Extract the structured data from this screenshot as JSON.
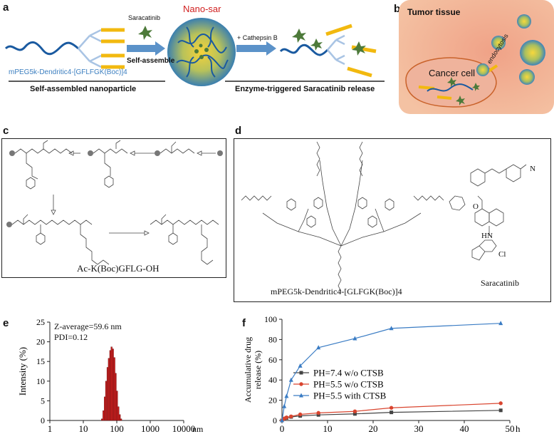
{
  "panels": {
    "a": {
      "label": "a",
      "drug_label": "Saracatinib",
      "self_assemble_label": "Self-assemble",
      "nano_title": "Nano-sar",
      "cathepsin_label": "+ Cathepsin B",
      "polymer_label": "mPEG5k-Dendritic4-[GFLFGK(Boc)]4",
      "caption_left": "Self-assembled nanoparticle",
      "caption_right": "Enzyme-triggered Saracatinib release"
    },
    "b": {
      "label": "b",
      "tissue_label": "Tumor tissue",
      "cell_label": "Cancer cell",
      "endocytosis_label": "endocytosis"
    },
    "c": {
      "label": "c",
      "product_label": "Ac-K(Boc)GFLG-OH"
    },
    "d": {
      "label": "d",
      "polymer_label": "mPEG5k-Dendritic4-[GLFGK(Boc)]4",
      "drug_label": "Saracatinib",
      "atom_O": "O",
      "atom_HN": "HN",
      "atom_Cl": "Cl",
      "atom_N": "N"
    },
    "e": {
      "label": "e",
      "z_average": "Z-average=59.6 nm",
      "pdi": "PDI=0.12"
    },
    "f": {
      "label": "f"
    }
  },
  "chart_data": [
    {
      "type": "bar",
      "ylabel": "Intensity (%)",
      "xunit": "nm",
      "xscale": "log",
      "xlim": [
        1,
        10000
      ],
      "ylim": [
        0,
        25
      ],
      "xticks": [
        "1",
        "10",
        "100",
        "1000",
        "10000"
      ],
      "yticks": [
        "0",
        "5",
        "10",
        "15",
        "20",
        "25"
      ],
      "x": [
        36,
        40,
        44,
        48,
        53,
        58,
        64,
        70,
        77,
        85,
        93,
        102,
        112,
        123,
        135
      ],
      "values": [
        0.4,
        2.5,
        6.0,
        10.0,
        13.5,
        15.8,
        17.8,
        18.7,
        18.2,
        16.0,
        12.0,
        7.5,
        3.5,
        1.5,
        0.4
      ],
      "color": "#cc1f1f"
    },
    {
      "type": "line",
      "ylabel": "Accumulative drug release (%)",
      "xunit": "h",
      "xlim": [
        0,
        50
      ],
      "ylim": [
        0,
        100
      ],
      "xticks": [
        "0",
        "10",
        "20",
        "30",
        "40",
        "50"
      ],
      "yticks": [
        "0",
        "20",
        "40",
        "60",
        "80",
        "100"
      ],
      "series": [
        {
          "name": "PH=7.4 w/o CTSB",
          "color": "#444444",
          "marker": "square",
          "x": [
            0,
            0.5,
            1,
            2,
            4,
            8,
            16,
            24,
            48
          ],
          "values": [
            0,
            1.5,
            2.5,
            3.5,
            4.5,
            5.5,
            6.5,
            8,
            10
          ]
        },
        {
          "name": "PH=5.5 w/o CTSB",
          "color": "#d9452f",
          "marker": "circle",
          "x": [
            0,
            0.5,
            1,
            2,
            4,
            8,
            16,
            24,
            48
          ],
          "values": [
            0,
            2,
            3,
            4,
            6,
            7.5,
            9,
            12.5,
            17
          ]
        },
        {
          "name": "PH=5.5 with CTSB",
          "color": "#3a7cc4",
          "marker": "triangle",
          "x": [
            0,
            0.5,
            1,
            2,
            4,
            8,
            16,
            24,
            48
          ],
          "values": [
            0,
            14,
            24,
            40,
            54,
            72,
            81,
            91,
            96
          ]
        }
      ]
    }
  ]
}
